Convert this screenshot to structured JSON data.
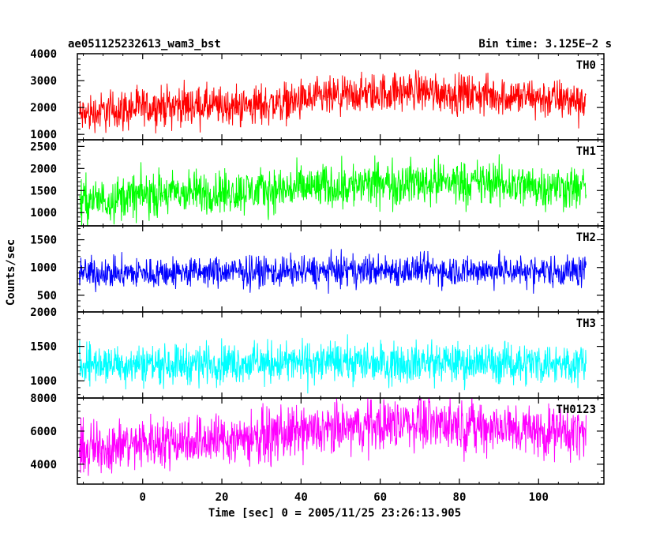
{
  "chart_data": {
    "type": "line",
    "title_left": "ae051125232613_wam3_bst",
    "title_right": "Bin time: 3.125E−2 s",
    "xlabel": "Time [sec] 0 = 2005/11/25 23:26:13.905",
    "ylabel": "Counts/sec",
    "xlim": [
      -16.5,
      116.5
    ],
    "x_ticks": [
      0,
      20,
      40,
      60,
      80,
      100
    ],
    "x_tick_labels": [
      "0",
      "20",
      "40",
      "60",
      "80",
      "100"
    ],
    "bin_time_s": 0.03125,
    "data_x_range": [
      -16,
      112
    ],
    "panels": [
      {
        "name": "TH0",
        "color": "#ff0000",
        "ylim": [
          800,
          4000
        ],
        "y_ticks": [
          1000,
          2000,
          3000,
          4000
        ],
        "y_tick_labels": [
          "1000",
          "2000",
          "3000",
          "4000"
        ],
        "trend_x": [
          -16,
          -10,
          0,
          10,
          20,
          30,
          40,
          50,
          60,
          70,
          80,
          90,
          100,
          112
        ],
        "trend_y": [
          1700,
          1850,
          2000,
          2100,
          2000,
          2100,
          2250,
          2400,
          2550,
          2650,
          2500,
          2450,
          2350,
          2250
        ],
        "spread": [
          1500,
          4000
        ]
      },
      {
        "name": "TH1",
        "color": "#00ff00",
        "ylim": [
          700,
          2650
        ],
        "y_ticks": [
          1000,
          1500,
          2000,
          2500
        ],
        "y_tick_labels": [
          "1000",
          "1500",
          "2000",
          "2500"
        ],
        "trend_x": [
          -16,
          -10,
          0,
          10,
          20,
          30,
          40,
          50,
          60,
          70,
          80,
          90,
          100,
          112
        ],
        "trend_y": [
          1250,
          1300,
          1400,
          1450,
          1450,
          1500,
          1550,
          1600,
          1650,
          1700,
          1700,
          1650,
          1600,
          1550
        ],
        "spread": [
          1000,
          2700
        ]
      },
      {
        "name": "TH2",
        "color": "#0000ff",
        "ylim": [
          200,
          1750
        ],
        "y_ticks": [
          500,
          1000,
          1500
        ],
        "y_tick_labels": [
          "500",
          "1000",
          "1500"
        ],
        "trend_x": [
          -16,
          0,
          20,
          40,
          60,
          80,
          100,
          112
        ],
        "trend_y": [
          900,
          900,
          920,
          930,
          950,
          950,
          940,
          930
        ],
        "spread": [
          800,
          1750
        ]
      },
      {
        "name": "TH3",
        "color": "#00ffff",
        "ylim": [
          750,
          2000
        ],
        "y_ticks": [
          1000,
          1500,
          2000
        ],
        "y_tick_labels": [
          "1000",
          "1500",
          "2000"
        ],
        "trend_x": [
          -16,
          0,
          20,
          40,
          60,
          80,
          100,
          112
        ],
        "trend_y": [
          1250,
          1250,
          1260,
          1260,
          1270,
          1260,
          1260,
          1250
        ],
        "spread": [
          1000,
          2000
        ]
      },
      {
        "name": "TH0123",
        "color": "#ff00ff",
        "ylim": [
          2800,
          8000
        ],
        "y_ticks": [
          4000,
          6000,
          8000
        ],
        "y_tick_labels": [
          "4000",
          "6000",
          "8000"
        ],
        "trend_x": [
          -16,
          -10,
          0,
          10,
          20,
          30,
          40,
          50,
          60,
          70,
          80,
          90,
          100,
          112
        ],
        "trend_y": [
          4800,
          5000,
          5300,
          5500,
          5500,
          5700,
          5900,
          6100,
          6400,
          6600,
          6400,
          6200,
          6000,
          5900
        ],
        "spread": [
          2700,
          8000
        ]
      }
    ]
  }
}
